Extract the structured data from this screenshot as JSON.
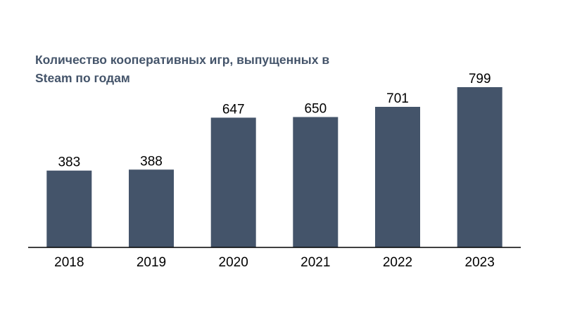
{
  "chart_data": {
    "type": "bar",
    "title": "Количество кооперативных игр, выпущенных в Steam по годам",
    "xlabel": "",
    "ylabel": "",
    "categories": [
      "2018",
      "2019",
      "2020",
      "2021",
      "2022",
      "2023"
    ],
    "values": [
      383,
      388,
      647,
      650,
      701,
      799
    ],
    "data_labels": [
      "383",
      "388",
      "647",
      "650",
      "701",
      "799"
    ],
    "ylim": [
      0,
      799
    ],
    "grid": false,
    "legend": "none",
    "bar_color": "#44546A"
  }
}
